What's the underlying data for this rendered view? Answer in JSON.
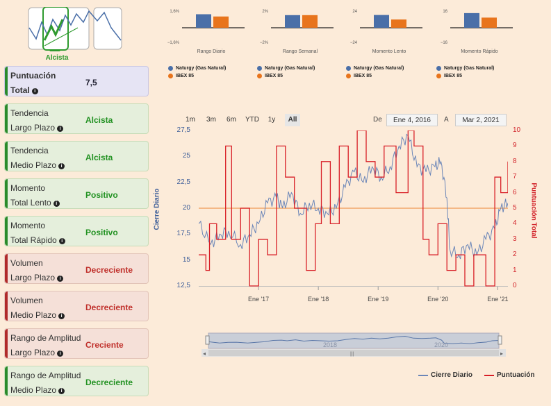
{
  "logo": {
    "label": "Alcista"
  },
  "cards": [
    {
      "line1": "Puntuación",
      "line2": "Total",
      "value": "7,5",
      "style": "purple"
    },
    {
      "line1": "Tendencia",
      "line2": "Largo Plazo",
      "value": "Alcista",
      "style": "green"
    },
    {
      "line1": "Tendencia",
      "line2": "Medio Plazo",
      "value": "Alcista",
      "style": "green"
    },
    {
      "line1": "Momento",
      "line2": "Total Lento",
      "value": "Positivo",
      "style": "green"
    },
    {
      "line1": "Momento",
      "line2": "Total Rápido",
      "value": "Positivo",
      "style": "green"
    },
    {
      "line1": "Volumen",
      "line2": "Largo Plazo",
      "value": "Decreciente",
      "style": "red"
    },
    {
      "line1": "Volumen",
      "line2": "Medio Plazo",
      "value": "Decreciente",
      "style": "red"
    },
    {
      "line1": "Rango de Amplitud",
      "line2": "Largo Plazo",
      "value": "Creciente",
      "style": "red"
    },
    {
      "line1": "Rango de Amplitud",
      "line2": "Medio Plazo",
      "value": "Decreciente",
      "style": "green"
    }
  ],
  "mini_legend": {
    "series1": "Naturgy (Gas Natural)",
    "series2": "IBEX 85"
  },
  "colors": {
    "naturgy": "#4a6fa8",
    "ibex": "#e8741c",
    "cierre": "#6b86b8",
    "puntuacion": "#d81e26",
    "green": "#239223",
    "red": "#c0302b"
  },
  "range_buttons": [
    "1m",
    "3m",
    "6m",
    "YTD",
    "1y",
    "All"
  ],
  "range_selected": "All",
  "date_from_label": "De",
  "date_from": "Ene 4, 2016",
  "date_to_label": "A",
  "date_to": "Mar 2, 2021",
  "main_chart": {
    "left_axis_title": "Cierre Diario",
    "right_axis_title": "Puntuación Total",
    "left_ticks": [
      "27,5",
      "25",
      "22,5",
      "20",
      "17,5",
      "15",
      "12,5"
    ],
    "right_ticks": [
      "10",
      "9",
      "8",
      "7",
      "6",
      "5",
      "4",
      "3",
      "2",
      "1",
      "0"
    ],
    "x_labels": [
      "Ene '17",
      "Ene '18",
      "Ene '19",
      "Ene '20",
      "Ene '21"
    ],
    "navigator_labels": [
      "2018",
      "2020"
    ],
    "legend_cierre": "Cierre Diario",
    "legend_puntuacion": "Puntuación"
  },
  "chart_data": [
    {
      "type": "bar",
      "title": "Rango Diario",
      "categories": [
        "Naturgy (Gas Natural)",
        "IBEX 85"
      ],
      "values": [
        1.2,
        1.0
      ],
      "ylim": [
        -1.6,
        1.6
      ],
      "tick_labels": [
        "1,6%",
        "−1,6%"
      ]
    },
    {
      "type": "bar",
      "title": "Rango Semanal",
      "categories": [
        "Naturgy (Gas Natural)",
        "IBEX 85"
      ],
      "values": [
        1.4,
        1.4
      ],
      "ylim": [
        -2,
        2
      ],
      "tick_labels": [
        "2%",
        "−2%"
      ]
    },
    {
      "type": "bar",
      "title": "Momento Lento",
      "categories": [
        "Naturgy (Gas Natural)",
        "IBEX 85"
      ],
      "values": [
        17,
        11
      ],
      "ylim": [
        -24,
        24
      ],
      "tick_labels": [
        "24",
        "−24"
      ]
    },
    {
      "type": "bar",
      "title": "Momento Rápido",
      "categories": [
        "Naturgy (Gas Natural)",
        "IBEX 85"
      ],
      "values": [
        13,
        9
      ],
      "ylim": [
        -16,
        16
      ],
      "tick_labels": [
        "16",
        "−16"
      ]
    },
    {
      "type": "line",
      "title": "",
      "x_range": [
        "2016-01-04",
        "2021-03-02"
      ],
      "series": [
        {
          "name": "Cierre Diario",
          "axis": "left",
          "ylim": [
            12.5,
            27.5
          ],
          "x": [
            2016.0,
            2016.2,
            2016.35,
            2016.5,
            2016.7,
            2016.85,
            2017.0,
            2017.15,
            2017.3,
            2017.4,
            2017.55,
            2017.7,
            2017.85,
            2018.0,
            2018.15,
            2018.3,
            2018.45,
            2018.6,
            2018.75,
            2018.9,
            2019.05,
            2019.2,
            2019.35,
            2019.5,
            2019.65,
            2019.8,
            2019.95,
            2020.05,
            2020.15,
            2020.2,
            2020.35,
            2020.5,
            2020.65,
            2020.8,
            2020.95,
            2021.05,
            2021.17
          ],
          "values": [
            18.5,
            16.5,
            17.5,
            17.8,
            16.5,
            17.5,
            18.5,
            20.5,
            21.0,
            20.0,
            21.5,
            19.5,
            20.5,
            20.0,
            19.5,
            20.0,
            22.0,
            23.5,
            22.5,
            24.0,
            23.0,
            24.0,
            26.0,
            27.0,
            24.0,
            23.5,
            24.0,
            24.5,
            21.0,
            16.0,
            15.5,
            16.5,
            15.5,
            17.0,
            18.0,
            20.0,
            20.5
          ]
        },
        {
          "name": "Puntuación",
          "axis": "right",
          "ylim": [
            0,
            10
          ],
          "x": [
            2016.0,
            2016.12,
            2016.18,
            2016.3,
            2016.45,
            2016.55,
            2016.7,
            2016.85,
            2017.0,
            2017.15,
            2017.3,
            2017.45,
            2017.6,
            2017.8,
            2017.95,
            2018.05,
            2018.2,
            2018.35,
            2018.5,
            2018.65,
            2018.8,
            2018.95,
            2019.1,
            2019.3,
            2019.5,
            2019.6,
            2019.75,
            2019.85,
            2020.0,
            2020.15,
            2020.3,
            2020.45,
            2020.6,
            2020.8,
            2020.95,
            2021.05,
            2021.17
          ],
          "values": [
            2,
            1,
            4,
            3,
            9,
            3,
            5,
            0,
            3,
            2,
            9,
            7,
            5,
            1,
            4,
            8,
            4,
            9,
            7,
            10,
            8,
            7,
            9,
            6,
            10,
            9,
            3,
            2,
            4,
            1,
            2,
            0,
            2,
            0,
            7,
            6,
            8
          ]
        }
      ]
    }
  ]
}
